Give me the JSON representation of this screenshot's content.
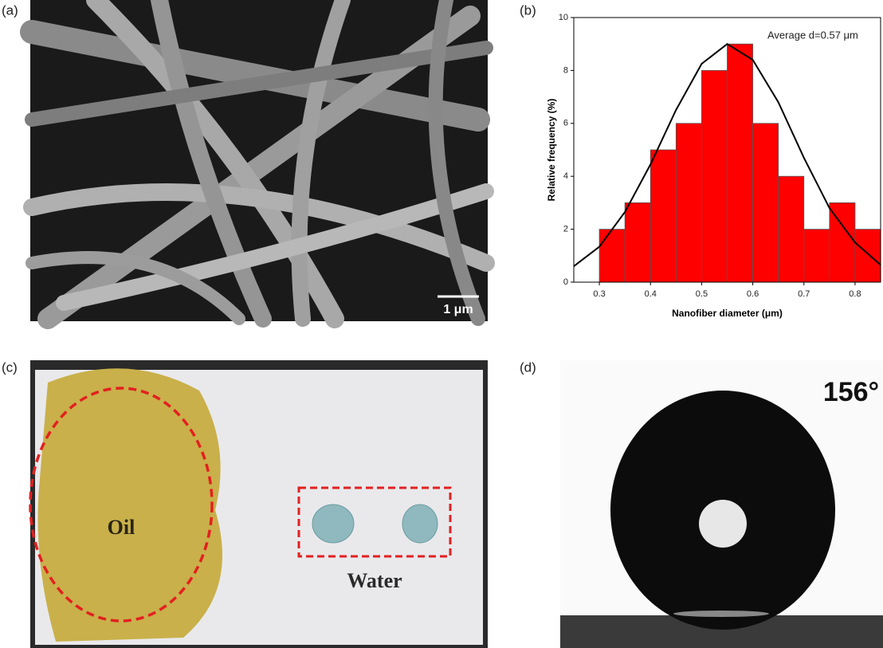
{
  "panels": {
    "a": {
      "label": "(a)",
      "scale_bar": "1 μm"
    },
    "b": {
      "label": "(b)"
    },
    "c": {
      "label": "(c)",
      "oil": "Oil",
      "water": "Water"
    },
    "d": {
      "label": "(d)",
      "angle": "156°"
    }
  },
  "chart_data": {
    "type": "histogram",
    "xlabel": "Nanofiber diameter (μm)",
    "ylabel": "Relative frequency (%)",
    "annotation": "Average d=0.57 μm",
    "bins": [
      0.3,
      0.35,
      0.4,
      0.45,
      0.5,
      0.55,
      0.6,
      0.65,
      0.7,
      0.75,
      0.8,
      0.85
    ],
    "values": [
      2,
      3,
      5,
      6,
      8,
      9,
      6,
      4,
      2,
      3,
      2
    ],
    "color": "#ff0000",
    "fit": {
      "color": "#000000",
      "x": [
        0.25,
        0.3,
        0.35,
        0.4,
        0.45,
        0.5,
        0.55,
        0.6,
        0.65,
        0.7,
        0.75,
        0.8,
        0.85
      ],
      "values": [
        0.6,
        1.34,
        2.65,
        4.45,
        6.51,
        8.25,
        9.0,
        8.4,
        6.8,
        4.7,
        2.8,
        1.5,
        0.65
      ]
    },
    "xlim": [
      0.25,
      0.85
    ],
    "ylim": [
      0,
      10
    ],
    "xticks": [
      0.3,
      0.4,
      0.5,
      0.6,
      0.7,
      0.8
    ],
    "yticks": [
      0,
      2,
      4,
      6,
      8,
      10
    ]
  }
}
